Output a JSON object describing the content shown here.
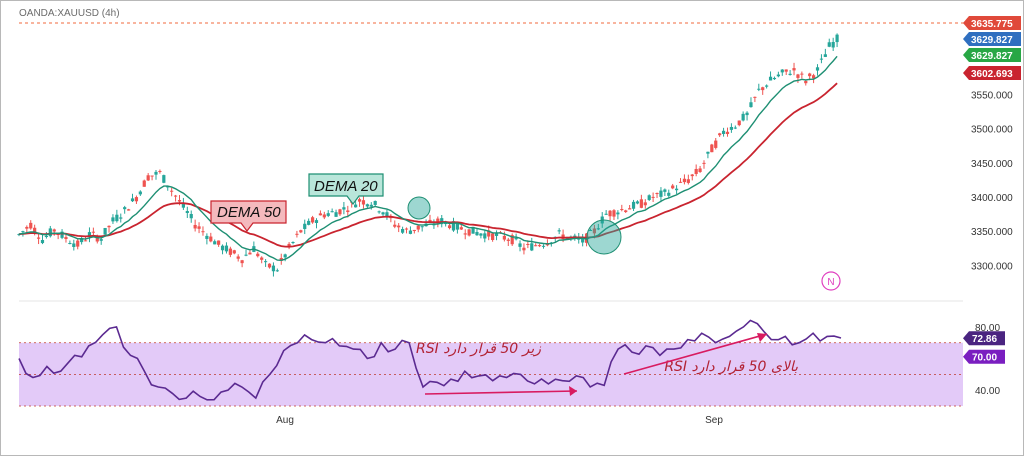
{
  "symbol": "OANDA:XAUUSD (4h)",
  "watermark_letter": "N",
  "colors": {
    "bull": "#26a69a",
    "bear": "#ef5350",
    "dema20": "#1e8f73",
    "dema50": "#c9242f",
    "rsi": "#5b2a91",
    "rsi_band": "#d9b8f5",
    "arrow": "#d81b60",
    "last_price": "#f06a3d"
  },
  "price_panel": {
    "y_ticks": [
      "3650.000",
      "3550.000",
      "3500.000",
      "3450.000",
      "3400.000",
      "3350.000",
      "3300.000"
    ],
    "tags": [
      {
        "label": "3635.775",
        "color": "#e0493a"
      },
      {
        "label": "3629.827",
        "color": "#2f6fc0"
      },
      {
        "label": "3629.827",
        "color": "#28a745"
      },
      {
        "label": "3602.693",
        "color": "#c9242f"
      }
    ],
    "dema50_label": "DEMA 50",
    "dema20_label": "DEMA 20"
  },
  "rsi_panel": {
    "y_ticks": [
      "80.00",
      "60.00",
      "40.00"
    ],
    "tags": [
      {
        "label": "72.86",
        "color": "#4a2480"
      },
      {
        "label": "70.00",
        "color": "#7a1ec0"
      }
    ],
    "annotation_below": "RSI زیر 50 قرار دارد",
    "annotation_above": "RSI بالای 50 قرار دارد"
  },
  "x_ticks": [
    "Aug",
    "Sep"
  ],
  "chart_data": [
    {
      "type": "candlestick",
      "title": "OANDA:XAUUSD (4h)",
      "x_labels": [
        "Aug",
        "Sep"
      ],
      "ylim": [
        3270,
        3660
      ],
      "last_price": 3635.775,
      "series": [
        {
          "name": "DEMA 20",
          "last": 3629.827
        },
        {
          "name": "DEMA 50",
          "last": 3602.693
        }
      ],
      "close_path": [
        3345,
        3360,
        3338,
        3352,
        3340,
        3330,
        3345,
        3340,
        3365,
        3380,
        3400,
        3430,
        3435,
        3410,
        3385,
        3360,
        3345,
        3330,
        3320,
        3310,
        3325,
        3300,
        3295,
        3325,
        3350,
        3365,
        3375,
        3378,
        3385,
        3395,
        3392,
        3380,
        3360,
        3350,
        3355,
        3360,
        3365,
        3358,
        3352,
        3348,
        3345,
        3342,
        3338,
        3325,
        3330,
        3335,
        3345,
        3340,
        3335,
        3350,
        3375,
        3380,
        3385,
        3390,
        3400,
        3405,
        3415,
        3425,
        3440,
        3470,
        3495,
        3505,
        3520,
        3555,
        3570,
        3580,
        3585,
        3570,
        3585,
        3620,
        3636
      ]
    },
    {
      "type": "line",
      "title": "RSI",
      "ylim": [
        30,
        85
      ],
      "series": [
        {
          "name": "RSI",
          "last": 72.86
        }
      ],
      "reference_levels": [
        30,
        50,
        70
      ],
      "values": [
        60,
        48,
        55,
        52,
        62,
        68,
        75,
        80,
        62,
        52,
        42,
        38,
        35,
        36,
        34,
        40,
        42,
        35,
        50,
        65,
        70,
        72,
        70,
        68,
        66,
        60,
        70,
        66,
        70,
        42,
        45,
        47,
        52,
        49,
        46,
        48,
        50,
        44,
        44,
        46,
        49,
        42,
        43,
        66,
        64,
        68,
        62,
        66,
        72,
        76,
        70,
        74,
        80,
        82,
        72,
        74,
        70,
        76,
        74,
        73
      ]
    }
  ]
}
